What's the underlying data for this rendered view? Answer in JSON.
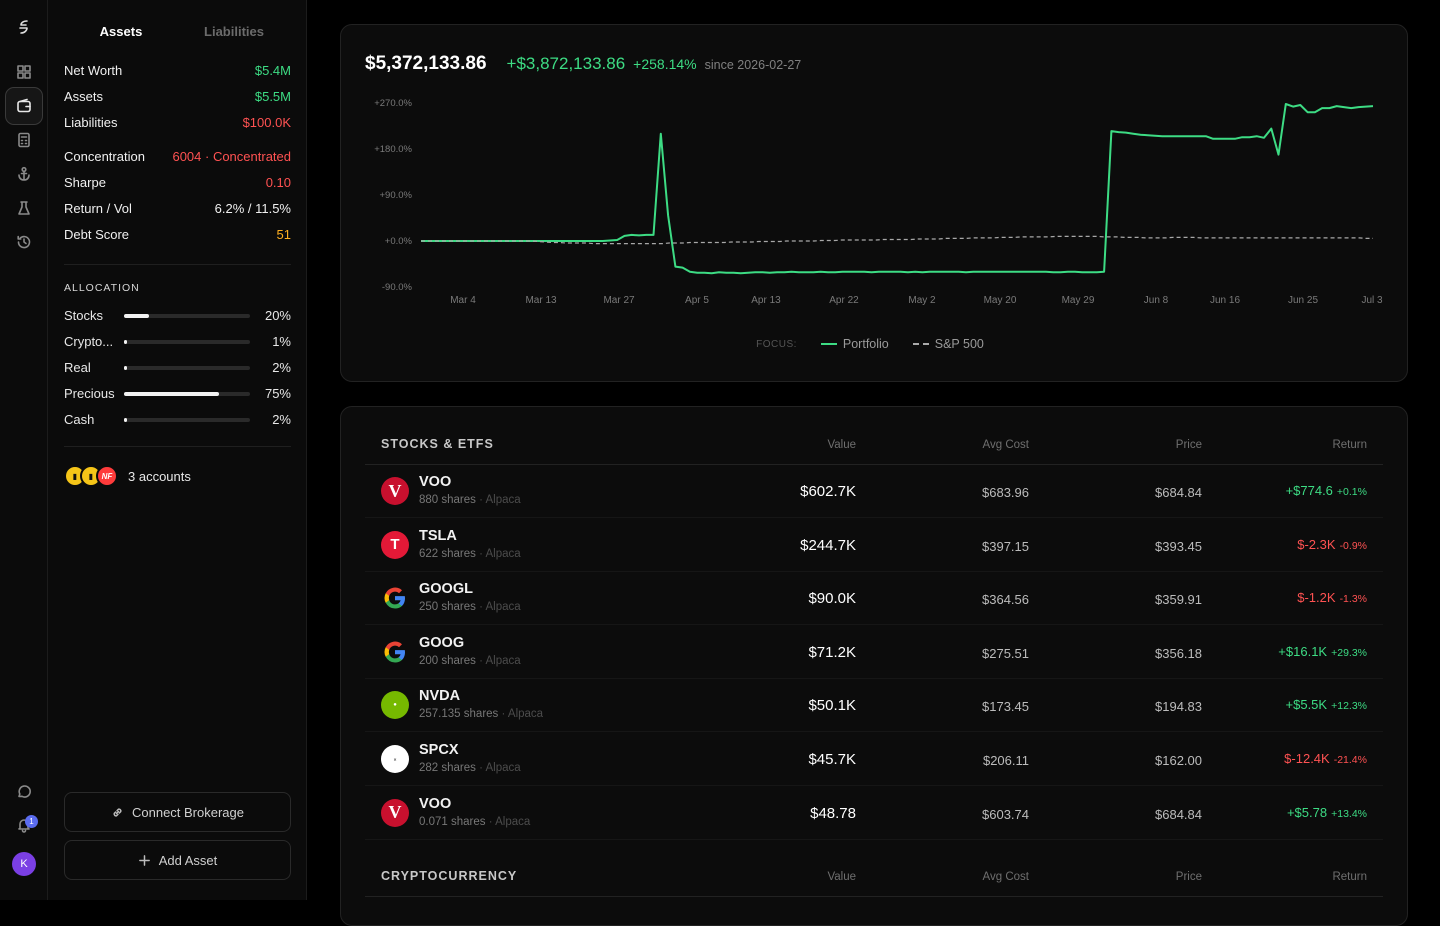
{
  "rail": {
    "icons": [
      "logo-icon",
      "dashboard-icon",
      "wallet-icon",
      "calculator-icon",
      "anchor-icon",
      "flask-icon",
      "history-icon"
    ],
    "bottom_icons": [
      "chat-icon",
      "bell-icon"
    ],
    "notification_count": "1",
    "avatar_initial": "K"
  },
  "sidebar": {
    "tab_assets": "Assets",
    "tab_liabilities": "Liabilities",
    "stats": [
      {
        "label": "Net Worth",
        "value": "$5.4M"
      },
      {
        "label": "Assets",
        "value": "$5.5M"
      },
      {
        "label": "Liabilities",
        "value": "$100.0K"
      },
      {
        "label": "Concentration",
        "value": "6004 · Concentrated"
      },
      {
        "label": "Sharpe",
        "value": "0.10"
      },
      {
        "label": "Return / Vol",
        "value": "6.2% / 11.5%"
      },
      {
        "label": "Debt Score",
        "value": "51"
      }
    ],
    "allocation_title": "ALLOCATION",
    "allocation": [
      {
        "name": "Stocks",
        "pct_label": "20%",
        "fraction": 0.2
      },
      {
        "name": "Crypto...",
        "pct_label": "1%",
        "fraction": 0.01
      },
      {
        "name": "Real",
        "pct_label": "2%",
        "fraction": 0.02
      },
      {
        "name": "Precious",
        "pct_label": "75%",
        "fraction": 0.75
      },
      {
        "name": "Cash",
        "pct_label": "2%",
        "fraction": 0.02
      }
    ],
    "accounts_text": "3 accounts",
    "account_badge": "NF",
    "connect_label": "Connect Brokerage",
    "add_label": "Add Asset"
  },
  "summary": {
    "total": "$5,372,133.86",
    "gain": "+$3,872,133.86",
    "gain_pct": "+258.14%",
    "since": "since 2026-02-27"
  },
  "chart_data": {
    "type": "line",
    "y_ticks": [
      "+270.0%",
      "+180.0%",
      "+90.0%",
      "+0.0%",
      "-90.0%"
    ],
    "ylim": [
      -90,
      270
    ],
    "x_ticks": [
      "Mar 4",
      "Mar 13",
      "Mar 27",
      "Apr 5",
      "Apr 13",
      "Apr 22",
      "May 2",
      "May 20",
      "May 29",
      "Jun 8",
      "Jun 16",
      "Jun 25",
      "Jul 3"
    ],
    "legend_focus": "FOCUS:",
    "series": [
      {
        "name": "Portfolio",
        "color": "#3ddc84",
        "values": [
          0,
          0,
          0,
          0,
          0,
          0,
          0,
          0,
          0,
          0,
          0,
          0,
          0,
          0,
          0,
          0,
          0,
          0,
          0,
          0,
          0,
          0,
          0,
          0,
          0,
          0,
          1,
          2,
          10,
          12,
          11,
          12,
          12,
          210,
          50,
          -50,
          -52,
          -60,
          -62,
          -62,
          -63,
          -61,
          -62,
          -62,
          -63,
          -62,
          -61,
          -61,
          -62,
          -61,
          -61,
          -60,
          -61,
          -61,
          -61,
          -60,
          -61,
          -61,
          -60,
          -60,
          -60,
          -60,
          -61,
          -60,
          -60,
          -60,
          -60,
          -61,
          -60,
          -61,
          -60,
          -60,
          -60,
          -60,
          -60,
          -61,
          -60,
          -60,
          -60,
          -60,
          -60,
          -60,
          -60,
          -60,
          -60,
          -60,
          -60,
          -61,
          -61,
          -60,
          -60,
          -61,
          -61,
          -61,
          -60,
          215,
          213,
          212,
          210,
          208,
          207,
          206,
          205,
          205,
          205,
          205,
          205,
          205,
          205,
          200,
          200,
          200,
          200,
          203,
          203,
          205,
          202,
          220,
          169,
          268,
          263,
          266,
          252,
          252,
          260,
          260,
          264,
          262,
          260,
          262,
          263,
          264
        ]
      },
      {
        "name": "S&P 500",
        "color": "#a8a8a8",
        "dashed": true,
        "values": [
          0,
          0,
          0,
          0,
          0,
          0,
          0,
          0,
          0,
          0,
          0,
          0,
          0,
          0,
          0,
          0,
          0,
          -1,
          -2,
          -3,
          -3,
          -4,
          -4,
          -4,
          -4,
          -5,
          -5,
          -5,
          -5,
          -5,
          -5,
          -5,
          -5,
          -5,
          -5,
          -5,
          -4,
          -4,
          -4,
          -3,
          -3,
          -3,
          -3,
          -3,
          -3,
          -2,
          -2,
          -2,
          -2,
          -1,
          -1,
          -1,
          -1,
          0,
          0,
          0,
          0,
          0,
          1,
          1,
          1,
          2,
          2,
          2,
          2,
          2,
          2,
          3,
          3,
          3,
          3,
          3,
          4,
          4,
          4,
          4,
          5,
          5,
          5,
          5,
          6,
          6,
          6,
          6,
          7,
          7,
          7,
          8,
          8,
          8,
          8,
          8,
          9,
          9,
          9,
          9,
          9,
          9,
          9,
          8,
          8,
          8,
          7,
          7,
          7,
          6,
          6,
          6,
          6,
          7,
          7,
          7,
          7,
          6,
          6,
          6,
          6,
          6,
          6,
          6,
          6,
          6,
          6,
          6,
          6,
          6,
          6,
          6,
          6,
          6,
          6,
          6,
          6,
          6,
          6,
          6,
          6,
          5,
          5
        ]
      }
    ]
  },
  "table": {
    "stocks_title": "STOCKS & ETFS",
    "crypto_title": "CRYPTOCURRENCY",
    "columns": [
      "Value",
      "Avg Cost",
      "Price",
      "Return"
    ],
    "shares_word": "shares",
    "rows": [
      {
        "symbol": "VOO",
        "shares": "880",
        "broker": "Alpaca",
        "value": "$602.7K",
        "avg_cost": "$683.96",
        "price": "$684.84",
        "ret": "+$774.6",
        "ret_pct": "+0.1%",
        "positive": true,
        "logo": "vanguard"
      },
      {
        "symbol": "TSLA",
        "shares": "622",
        "broker": "Alpaca",
        "value": "$244.7K",
        "avg_cost": "$397.15",
        "price": "$393.45",
        "ret": "$-2.3K",
        "ret_pct": "-0.9%",
        "positive": false,
        "logo": "tesla"
      },
      {
        "symbol": "GOOGL",
        "shares": "250",
        "broker": "Alpaca",
        "value": "$90.0K",
        "avg_cost": "$364.56",
        "price": "$359.91",
        "ret": "$-1.2K",
        "ret_pct": "-1.3%",
        "positive": false,
        "logo": "google"
      },
      {
        "symbol": "GOOG",
        "shares": "200",
        "broker": "Alpaca",
        "value": "$71.2K",
        "avg_cost": "$275.51",
        "price": "$356.18",
        "ret": "+$16.1K",
        "ret_pct": "+29.3%",
        "positive": true,
        "logo": "google"
      },
      {
        "symbol": "NVDA",
        "shares": "257.135",
        "broker": "Alpaca",
        "value": "$50.1K",
        "avg_cost": "$173.45",
        "price": "$194.83",
        "ret": "+$5.5K",
        "ret_pct": "+12.3%",
        "positive": true,
        "logo": "nvidia"
      },
      {
        "symbol": "SPCX",
        "shares": "282",
        "broker": "Alpaca",
        "value": "$45.7K",
        "avg_cost": "$206.11",
        "price": "$162.00",
        "ret": "$-12.4K",
        "ret_pct": "-21.4%",
        "positive": false,
        "logo": "spacex"
      },
      {
        "symbol": "VOO",
        "shares": "0.071",
        "broker": "Alpaca",
        "value": "$48.78",
        "avg_cost": "$603.74",
        "price": "$684.84",
        "ret": "+$5.78",
        "ret_pct": "+13.4%",
        "positive": true,
        "logo": "vanguard"
      }
    ]
  }
}
